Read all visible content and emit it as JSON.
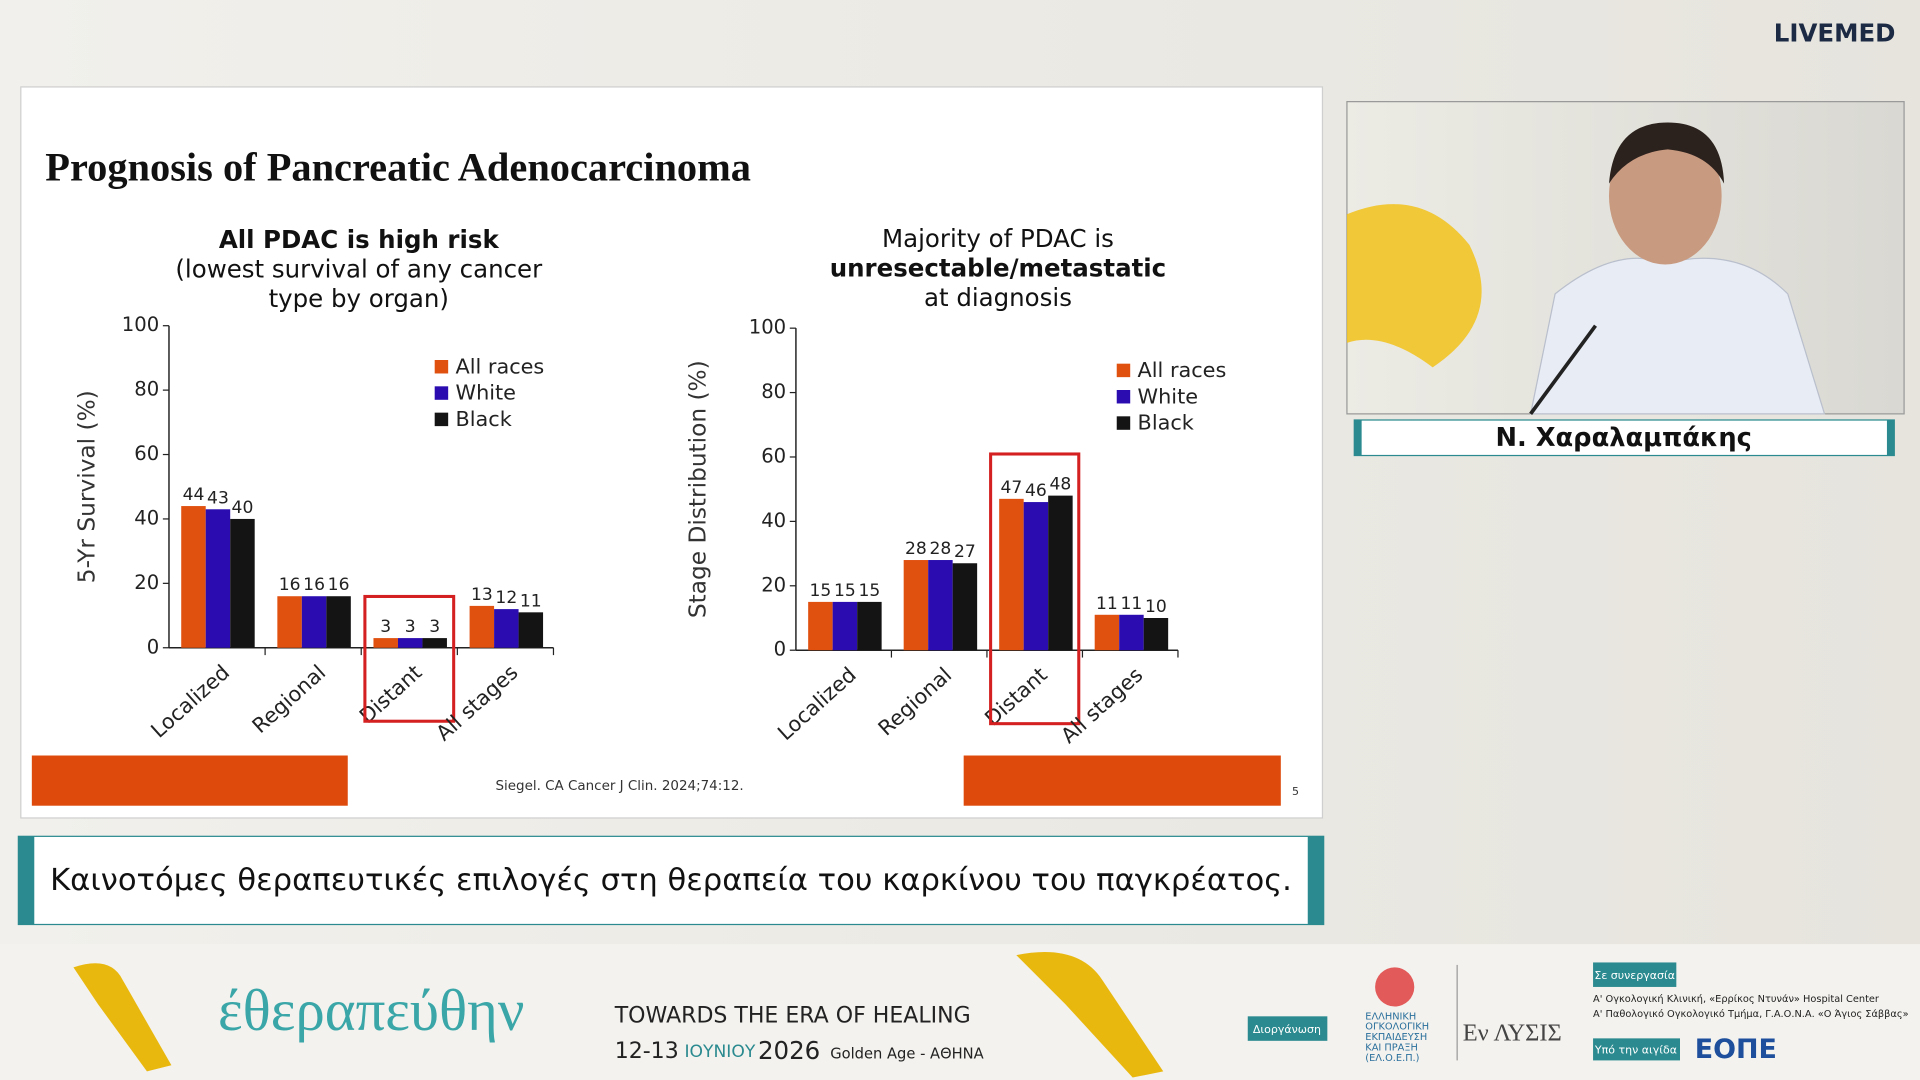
{
  "brand": "LIVEMED",
  "slide": {
    "title": "Prognosis of Pancreatic Adenocarcinoma",
    "citation": "Siegel. CA Cancer J Clin. 2024;74:12.",
    "page": "5"
  },
  "chart_data": [
    {
      "type": "bar",
      "title_lines": [
        "All PDAC is high risk",
        "(lowest survival of any cancer",
        "type by organ)"
      ],
      "title_bold": [
        true,
        false,
        false
      ],
      "y_label": "5-Yr Survival (%)",
      "categories": [
        "Localized",
        "Regional",
        "Distant",
        "All stages"
      ],
      "series": [
        {
          "name": "All races",
          "color": "#e0500f",
          "values": [
            44,
            16,
            3,
            13
          ]
        },
        {
          "name": "White",
          "color": "#2a0cb0",
          "values": [
            43,
            16,
            3,
            12
          ]
        },
        {
          "name": "Black",
          "color": "#141414",
          "values": [
            40,
            16,
            3,
            11
          ]
        }
      ],
      "ylim": [
        0,
        100
      ],
      "yticks": [
        0,
        20,
        40,
        60,
        80,
        100
      ],
      "highlight": 2,
      "highlight_color": "#d42020"
    },
    {
      "type": "bar",
      "title_lines": [
        "Majority of PDAC is",
        "unresectable/metastatic",
        "at diagnosis"
      ],
      "title_bold": [
        false,
        true,
        false
      ],
      "y_label": "Stage Distribution (%)",
      "categories": [
        "Localized",
        "Regional",
        "Distant",
        "All stages"
      ],
      "series": [
        {
          "name": "All races",
          "color": "#e0500f",
          "values": [
            15,
            28,
            47,
            11
          ]
        },
        {
          "name": "White",
          "color": "#2a0cb0",
          "values": [
            15,
            28,
            46,
            11
          ]
        },
        {
          "name": "Black",
          "color": "#141414",
          "values": [
            15,
            27,
            48,
            10
          ]
        }
      ],
      "ylim": [
        0,
        100
      ],
      "yticks": [
        0,
        20,
        40,
        60,
        80,
        100
      ],
      "highlight": 2,
      "highlight_color": "#d42020"
    }
  ],
  "speaker": "Ν. Χαραλαμπάκης",
  "caption": "Καινοτόμες θεραπευτικές επιλογές στη θεραπεία του καρκίνου του παγκρέατος.",
  "footer": {
    "logo": "έθεραπεύθην",
    "tagline": "TOWARDS THE ERA OF HEALING",
    "days": "12-13",
    "month": "ΙΟΥΝΙΟΥ",
    "year": "2026",
    "venue": "Golden Age - ΑΘΗΝΑ",
    "organizer_label": "Διοργάνωση",
    "organizer": [
      "ΕΛΛΗΝΙΚΗ",
      "ΟΓΚΟΛΟΓΙΚΗ",
      "ΕΚΠΑΙΔΕΥΣΗ",
      "ΚΑΙ ΠΡΑΞΗ",
      "(ΕΛ.Ο.Ε.Π.)"
    ],
    "partner_logo": "Εν ΛΥΣΙΣ",
    "collab_label": "Σε συνεργασία",
    "collab": [
      "Α' Ογκολογική Κλινική, «Ερρίκος Ντυνάν» Hospital Center",
      "Α' Παθολογικό Ογκολογικό Τμήμα, Γ.Α.Ο.Ν.Α. «Ο Άγιος Σάββας»"
    ],
    "auspices_label": "Υπό την αιγίδα",
    "auspices": "ΕΟΠΕ"
  }
}
